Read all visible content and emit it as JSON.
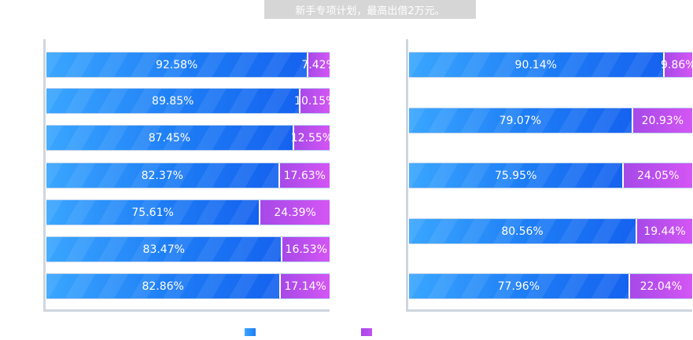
{
  "header": {
    "banner_text": "新手专项计划，最高出借2万元。"
  },
  "colors": {
    "blue": "#1d7cf5",
    "purple": "#c252f0"
  },
  "legend": {
    "items": [
      {
        "color": "#1d7cf5"
      },
      {
        "color": "#c252f0"
      }
    ]
  },
  "chart_data": [
    {
      "type": "bar",
      "stacked": true,
      "orientation": "horizontal",
      "values_blue": [
        92.58,
        89.85,
        87.45,
        82.37,
        75.61,
        83.47,
        82.86
      ],
      "values_purple": [
        7.42,
        10.15,
        12.55,
        17.63,
        24.39,
        16.53,
        17.14
      ],
      "labels_blue": [
        "92.58%",
        "89.85%",
        "87.45%",
        "82.37%",
        "75.61%",
        "83.47%",
        "82.86%"
      ],
      "labels_purple": [
        "7.42%",
        "10.15%",
        "12.55%",
        "17.63%",
        "24.39%",
        "16.53%",
        "17.14%"
      ],
      "xlim": [
        0,
        100
      ]
    },
    {
      "type": "bar",
      "stacked": true,
      "orientation": "horizontal",
      "values_blue": [
        90.14,
        79.07,
        75.95,
        80.56,
        77.96
      ],
      "values_purple": [
        9.86,
        20.93,
        24.05,
        19.44,
        22.04
      ],
      "labels_blue": [
        "90.14%",
        "79.07%",
        "75.95%",
        "80.56%",
        "77.96%"
      ],
      "labels_purple": [
        "9.86%",
        "20.93%",
        "24.05%",
        "19.44%",
        "22.04%"
      ],
      "xlim": [
        0,
        100
      ]
    }
  ]
}
